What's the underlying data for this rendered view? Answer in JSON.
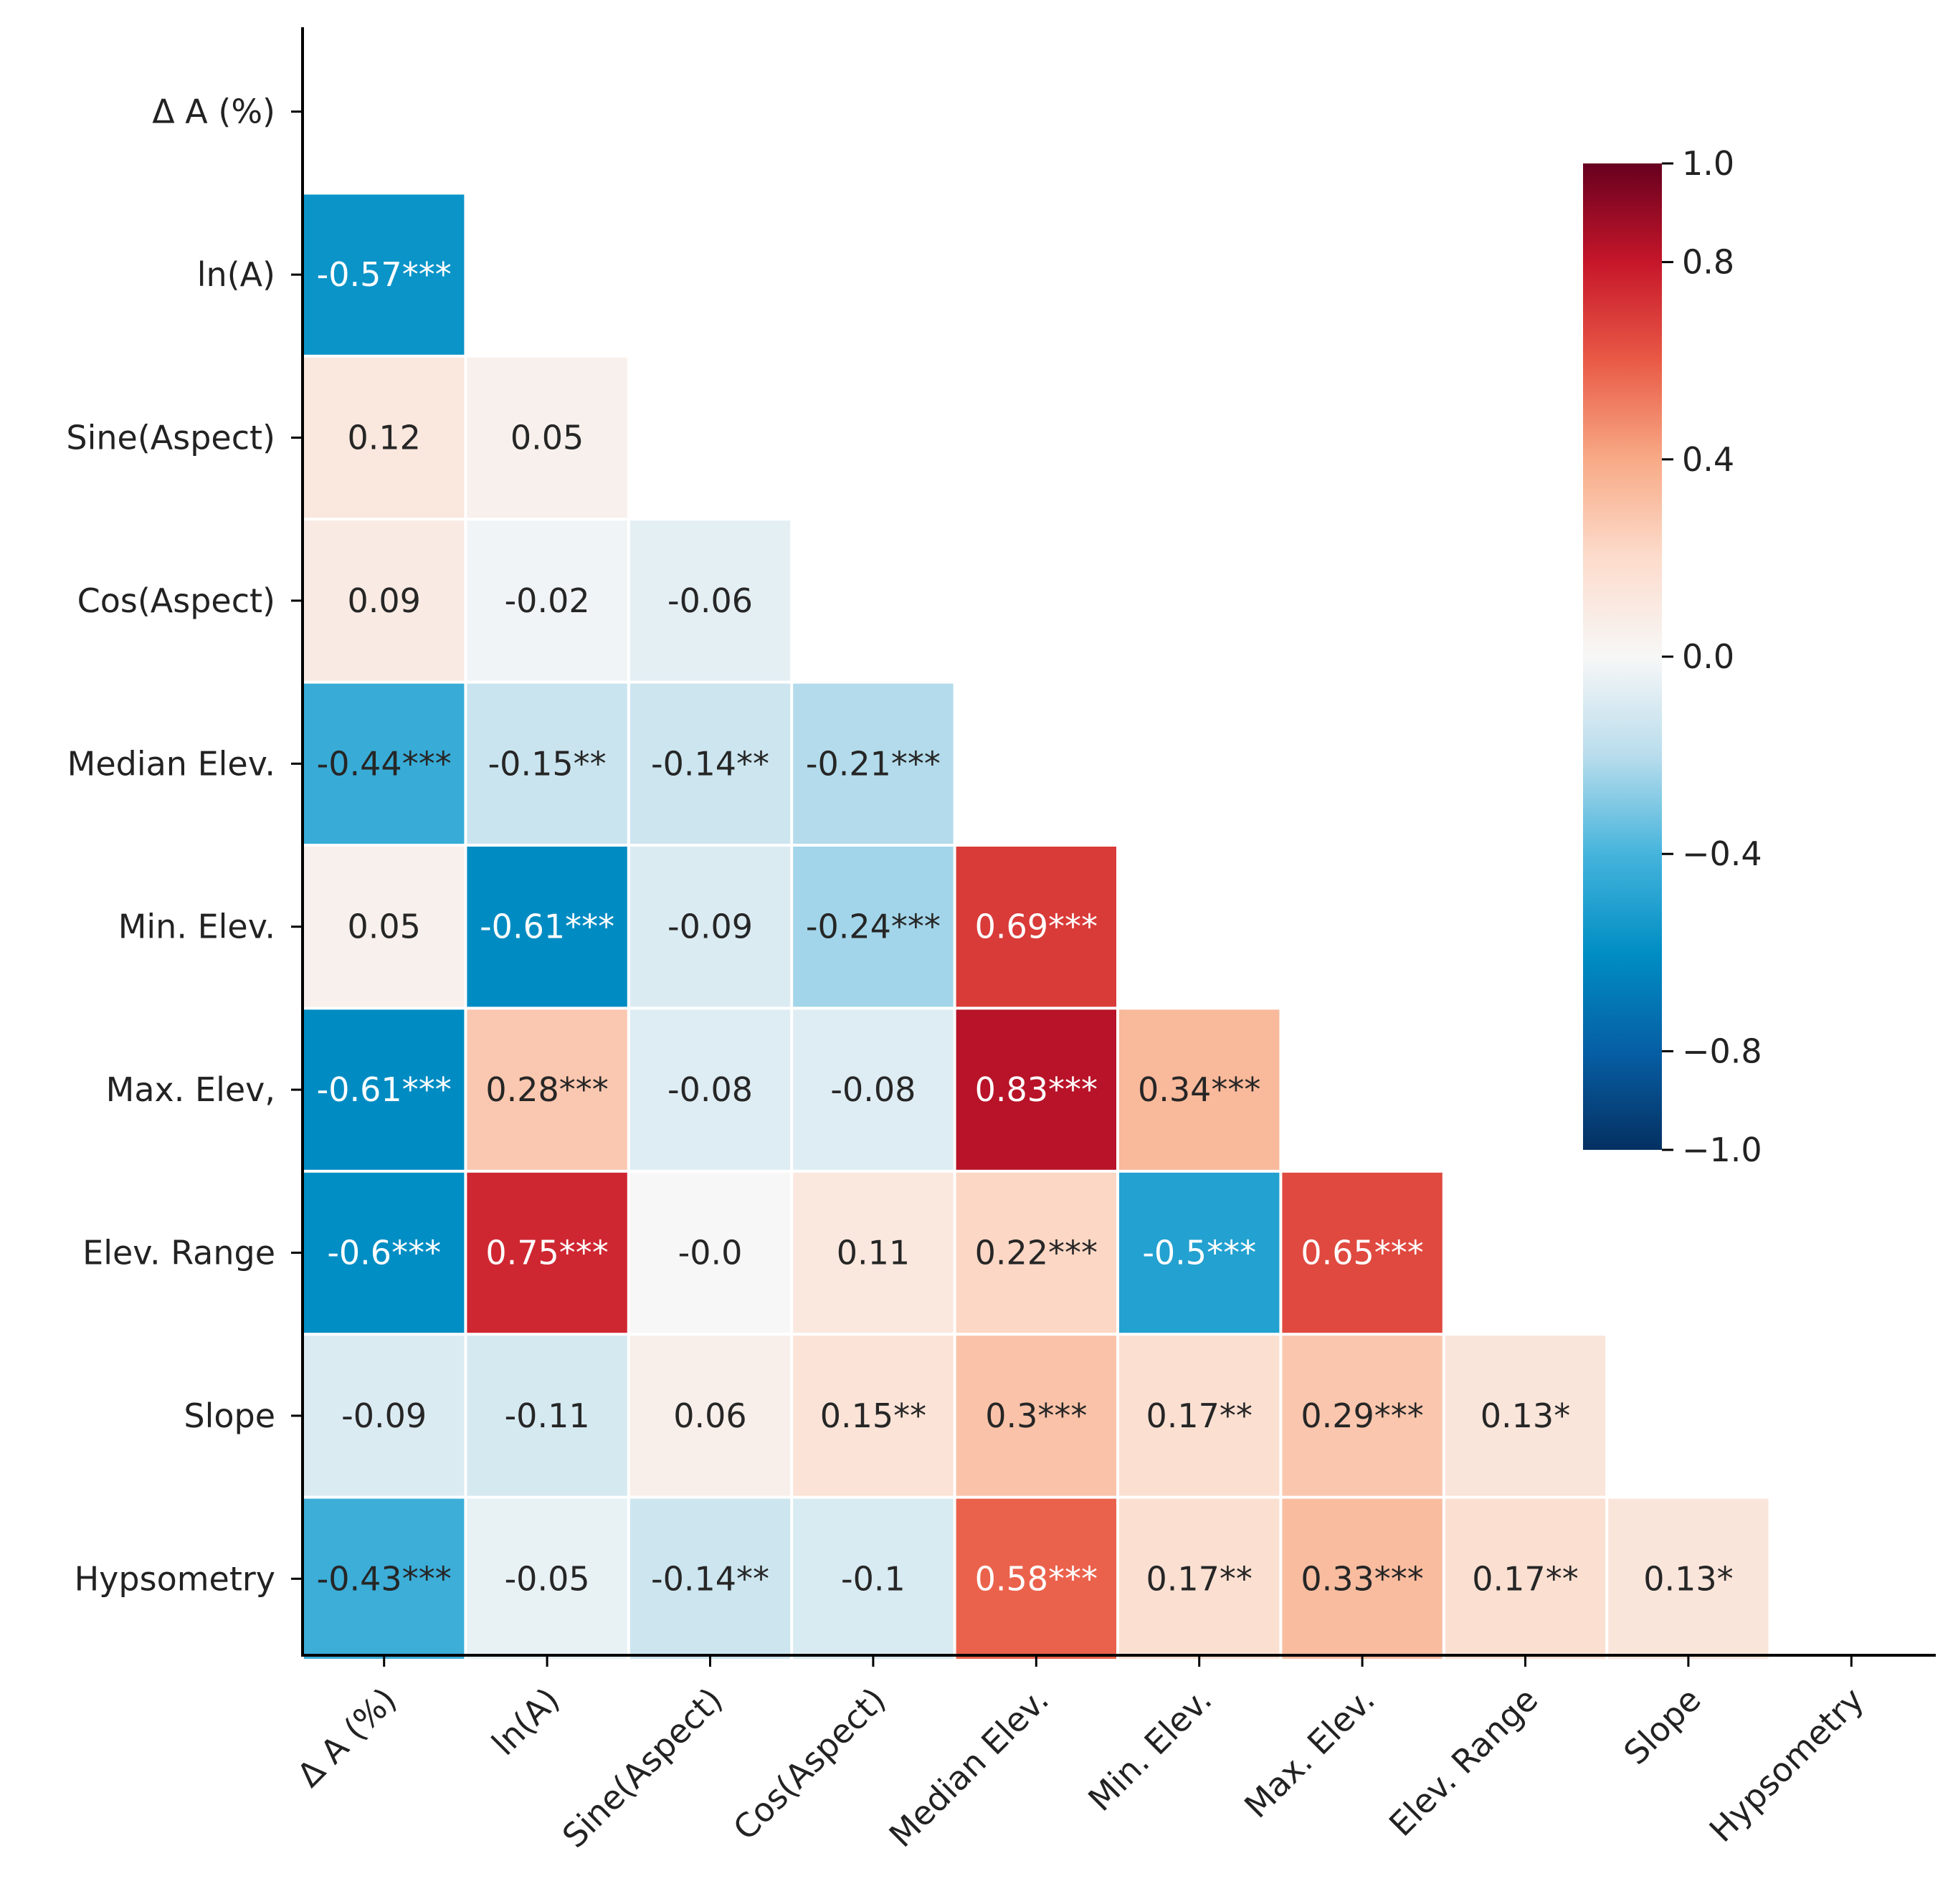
{
  "chart_data": {
    "type": "heatmap",
    "title": "",
    "variables": [
      "Δ A (%)",
      "ln(A)",
      "Sine(Aspect)",
      "Cos(Aspect)",
      "Median Elev.",
      "Min. Elev.",
      "Max. Elev,",
      "Elev. Range",
      "Slope",
      "Hypsometry"
    ],
    "x_tick_labels": [
      "Δ A (%)",
      "ln(A)",
      "Sine(Aspect)",
      "Cos(Aspect)",
      "Median Elev.",
      "Min. Elev.",
      "Max. Elev.",
      "Elev. Range",
      "Slope",
      "Hypsometry"
    ],
    "mask": "upper-triangle-including-diagonal",
    "rows": [
      {
        "values": [],
        "labels": []
      },
      {
        "values": [
          -0.57
        ],
        "labels": [
          "-0.57***"
        ]
      },
      {
        "values": [
          0.12,
          0.05
        ],
        "labels": [
          "0.12",
          "0.05"
        ]
      },
      {
        "values": [
          0.09,
          -0.02,
          -0.06
        ],
        "labels": [
          "0.09",
          "-0.02",
          "-0.06"
        ]
      },
      {
        "values": [
          -0.44,
          -0.15,
          -0.14,
          -0.21
        ],
        "labels": [
          "-0.44***",
          "-0.15**",
          "-0.14**",
          "-0.21***"
        ]
      },
      {
        "values": [
          0.05,
          -0.61,
          -0.09,
          -0.24,
          0.69
        ],
        "labels": [
          "0.05",
          "-0.61***",
          "-0.09",
          "-0.24***",
          "0.69***"
        ]
      },
      {
        "values": [
          -0.61,
          0.28,
          -0.08,
          -0.08,
          0.83,
          0.34
        ],
        "labels": [
          "-0.61***",
          "0.28***",
          "-0.08",
          "-0.08",
          "0.83***",
          "0.34***"
        ]
      },
      {
        "values": [
          -0.6,
          0.75,
          -0.0,
          0.11,
          0.22,
          -0.5,
          0.65
        ],
        "labels": [
          "-0.6***",
          "0.75***",
          "-0.0",
          "0.11",
          "0.22***",
          "-0.5***",
          "0.65***"
        ]
      },
      {
        "values": [
          -0.09,
          -0.11,
          0.06,
          0.15,
          0.3,
          0.17,
          0.29,
          0.13
        ],
        "labels": [
          "-0.09",
          "-0.11",
          "0.06",
          "0.15**",
          "0.3***",
          "0.17**",
          "0.29***",
          "0.13*"
        ]
      },
      {
        "values": [
          -0.43,
          -0.05,
          -0.14,
          -0.1,
          0.58,
          0.17,
          0.33,
          0.17,
          0.13
        ],
        "labels": [
          "-0.43***",
          "-0.05",
          "-0.14**",
          "-0.1",
          "0.58***",
          "0.17**",
          "0.33***",
          "0.17**",
          "0.13*"
        ]
      }
    ],
    "colorbar": {
      "range": [
        -1.0,
        1.0
      ],
      "ticks": [
        1.0,
        0.8,
        0.4,
        0.0,
        -0.4,
        -0.8,
        -1.0
      ],
      "tick_labels": [
        "1.0",
        "0.8",
        "0.4",
        "0.0",
        "−0.4",
        "−0.8",
        "−1.0"
      ],
      "colormap": "RdBu_r",
      "colors": {
        "min": "#053061",
        "low": "#0094c5",
        "mid": "#f7f7f7",
        "high": "#f4a582",
        "max": "#67001f"
      }
    },
    "grid": false,
    "legend": "right"
  }
}
